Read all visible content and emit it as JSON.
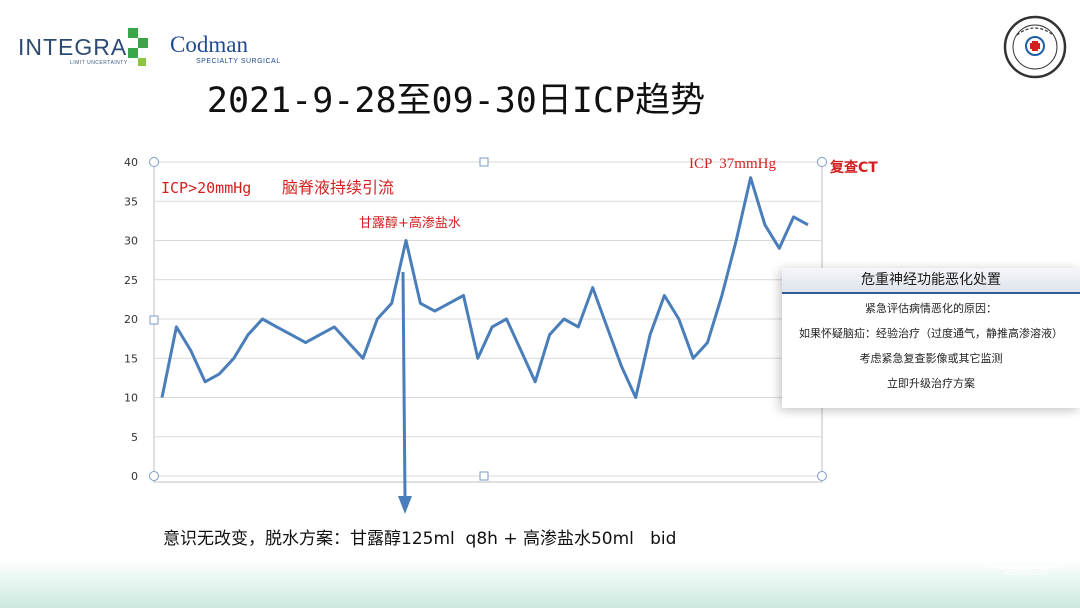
{
  "logos": {
    "integra": "INTEGRA",
    "integra_tagline": "LIMIT UNCERTAINTY",
    "codman": "Codman",
    "codman_tagline": "SPECIALTY SURGICAL",
    "seal_brand": "hospital-seal",
    "watermark_text": "脑医汇",
    "watermark_sub": "Brainmed.com"
  },
  "slide": {
    "title": "2021-9-28至09-30日ICP趋势",
    "bottom_note": "意识无改变，脱水方案：甘露醇125ml  q8h + 高渗盐水50ml   bid"
  },
  "chart_data": {
    "type": "line",
    "y": [
      10,
      19,
      16,
      12,
      13,
      15,
      18,
      20,
      19,
      18,
      17,
      18,
      19,
      17,
      15,
      20,
      22,
      30,
      22,
      21,
      22,
      23,
      15,
      19,
      20,
      16,
      12,
      18,
      20,
      19,
      24,
      19,
      14,
      10,
      18,
      23,
      20,
      15,
      17,
      23,
      30,
      38,
      32,
      29,
      33,
      32
    ],
    "ylim": [
      0,
      40
    ],
    "yticks": [
      0,
      5,
      10,
      15,
      20,
      25,
      30,
      35,
      40
    ],
    "grid": true,
    "line_color": "#4a7ebb",
    "annotations": {
      "threshold": "ICP>20mmHg",
      "csf_drainage": "脑脊液持续引流",
      "treatment": "甘露醇+高渗盐水",
      "peak": "ICP  37mmHg",
      "recheck": "复查CT"
    },
    "annotation_color": "#d21f1f"
  },
  "popup": {
    "title": "危重神经功能恶化处置",
    "lines": [
      "紧急评估病情恶化的原因：",
      "如果怀疑脑疝：经验治疗（过度通气，静推高渗溶液）",
      "考虑紧急复查影像或其它监测",
      "立即升级治疗方案"
    ]
  },
  "colors": {
    "title": "#111111",
    "accent_red": "#d21f1f",
    "line_blue": "#4a7ebb",
    "popup_border": "#2f5c97"
  }
}
